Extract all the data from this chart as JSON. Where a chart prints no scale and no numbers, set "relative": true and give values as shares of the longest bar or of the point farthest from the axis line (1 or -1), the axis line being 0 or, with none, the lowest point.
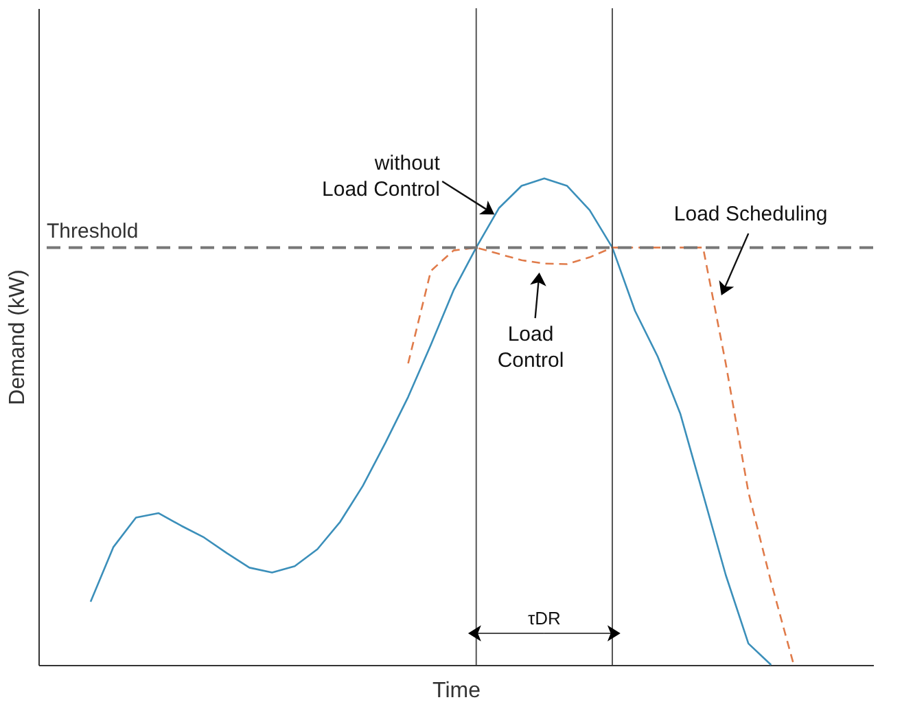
{
  "chart_data": {
    "type": "line",
    "relative": true,
    "xlabel": "Time",
    "ylabel": "Demand (kW)",
    "tick_labels": false,
    "categories": [
      null,
      null,
      null,
      null,
      null,
      null,
      null,
      null,
      null,
      null,
      null,
      null,
      null,
      null,
      null,
      null,
      null,
      null,
      null,
      null,
      null,
      null,
      null,
      null,
      null,
      null,
      null,
      null,
      null,
      null,
      null,
      null,
      null,
      null,
      null,
      null,
      null
    ],
    "series": [
      {
        "color": "#3b8fba",
        "line_style": "solid",
        "values": [
          null,
          null,
          0.13,
          0.242,
          0.303,
          0.312,
          0.286,
          0.262,
          0.23,
          0.2,
          0.19,
          0.203,
          0.238,
          0.294,
          0.368,
          0.457,
          0.551,
          0.658,
          0.77,
          0.858,
          0.939,
          0.985,
          1.0,
          0.985,
          0.935,
          0.858,
          0.728,
          0.634,
          0.516,
          0.351,
          0.185,
          0.044,
          0.0,
          null,
          null,
          null,
          null
        ]
      },
      {
        "color": "#e07b4a",
        "line_style": "dashed",
        "values": [
          null,
          null,
          null,
          null,
          null,
          null,
          null,
          null,
          null,
          null,
          null,
          null,
          null,
          null,
          null,
          null,
          0.62,
          0.81,
          0.852,
          0.858,
          0.845,
          0.832,
          0.825,
          0.824,
          0.838,
          0.858,
          0.858,
          0.858,
          0.858,
          0.858,
          0.62,
          0.355,
          0.17,
          0.0,
          null,
          null,
          null
        ]
      }
    ],
    "ref_lines": [
      {
        "axis": "y",
        "value": 0.858,
        "label": "Threshold",
        "color": "#777777",
        "line_style": "dashed"
      }
    ],
    "annotations": [
      "without\nLoad Control",
      "Load\nControl",
      "Load Scheduling",
      "τDR"
    ]
  }
}
